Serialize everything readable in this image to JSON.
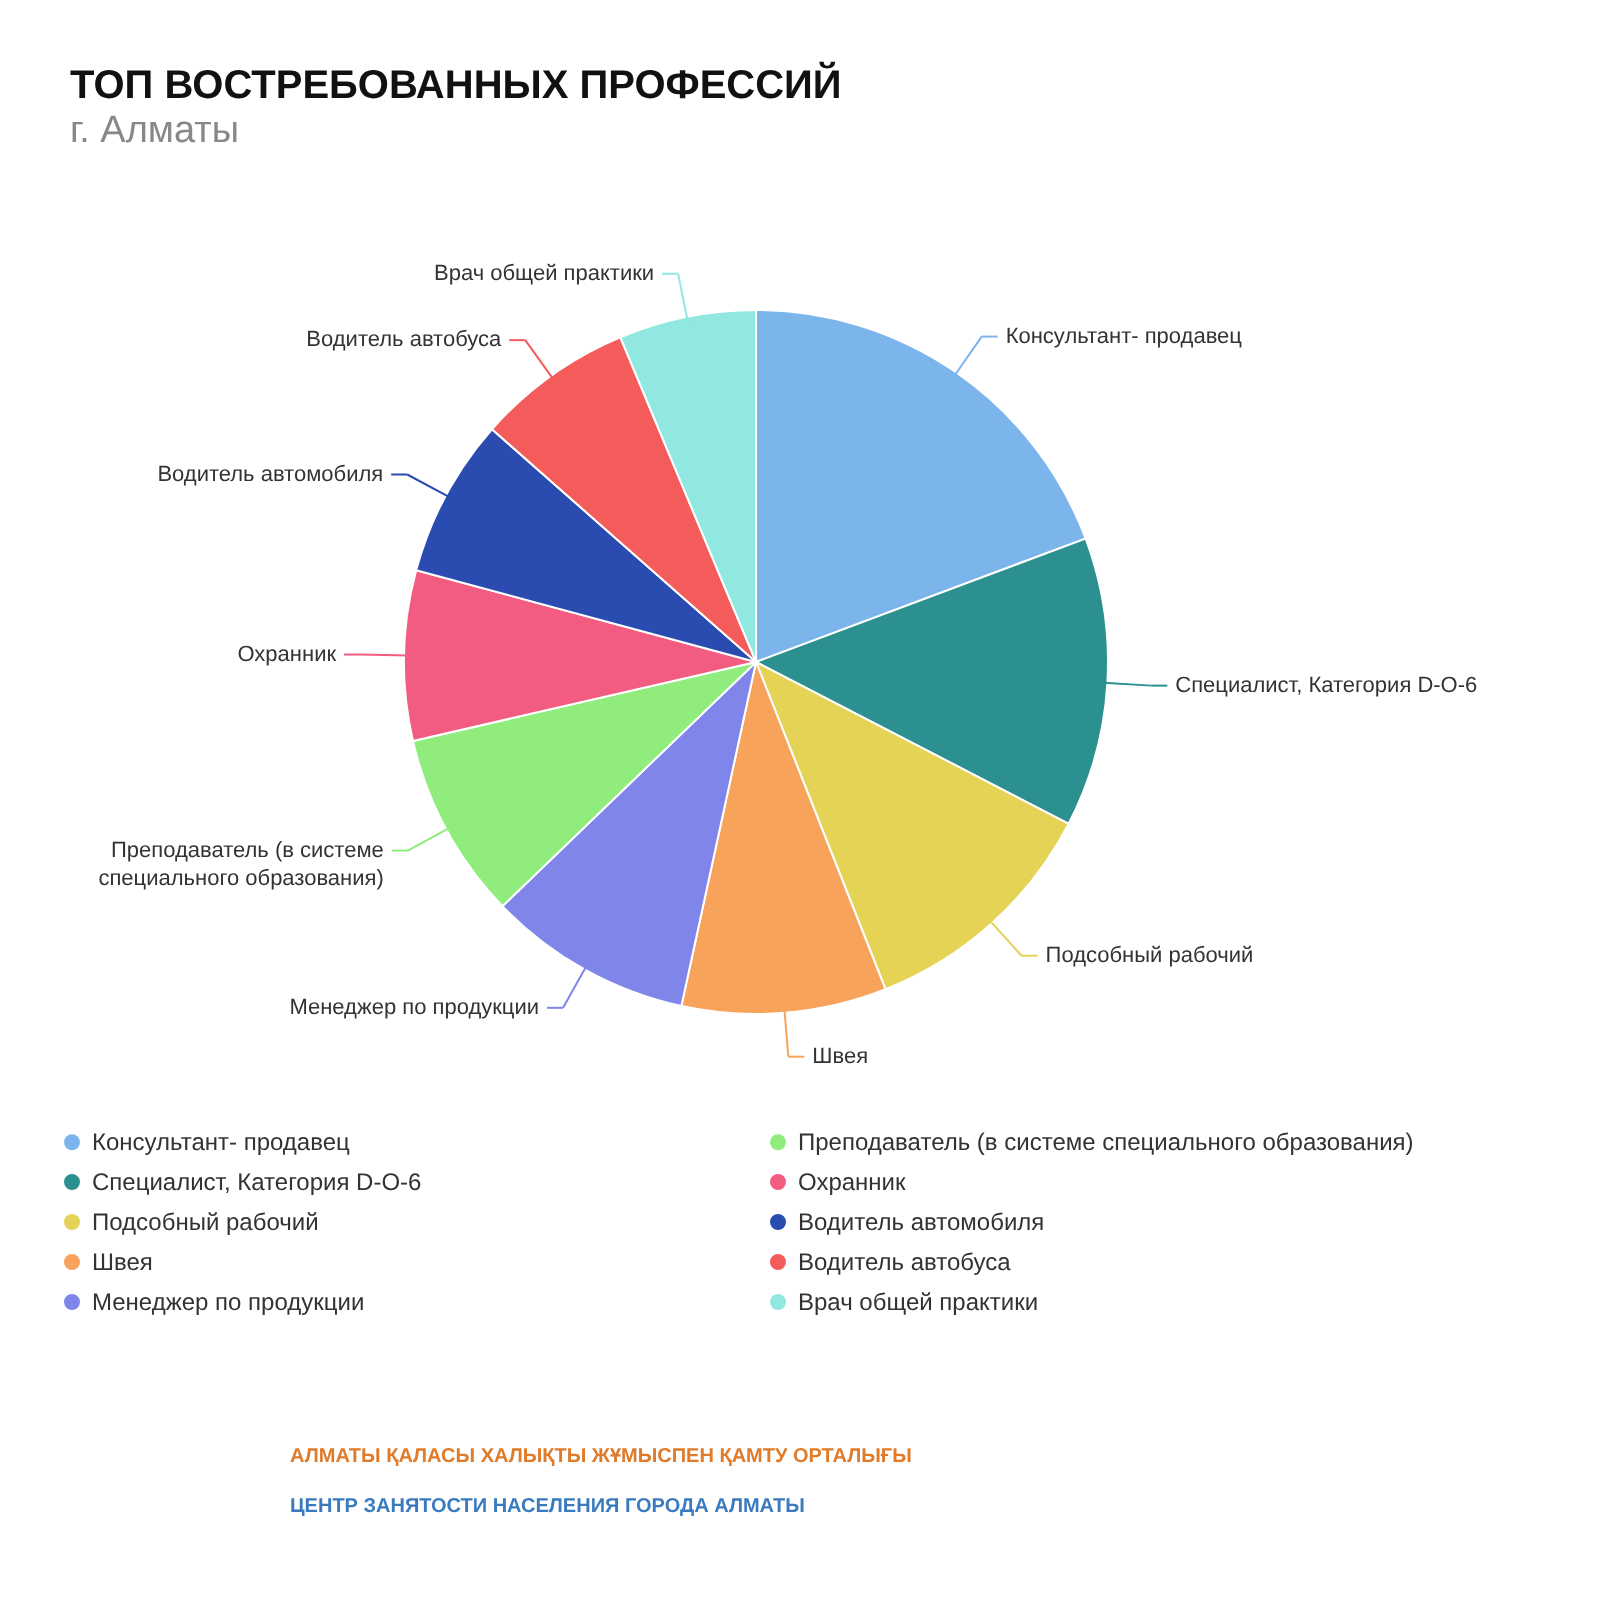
{
  "chart_data": {
    "type": "pie",
    "title": "ТОП ВОСТРЕБОВАННЫХ ПРОФЕССИЙ",
    "subtitle": "г. Алматы",
    "categories": [
      "Консультант- продавец",
      "Специалист, Категория D-O-6",
      "Подсобный рабочий",
      "Швея",
      "Менеджер по продукции",
      "Преподаватель (в системе специального образования)",
      "Охранник",
      "Водитель автомобиля",
      "Водитель автобуса",
      "Врач общей практики"
    ],
    "values": [
      19.3,
      13.3,
      11.4,
      9.4,
      9.4,
      8.6,
      7.8,
      7.3,
      7.2,
      6.3
    ],
    "colors": [
      "#7cb5ec",
      "#2b908f",
      "#e4d354",
      "#f7a35c",
      "#8085e9",
      "#90ed7d",
      "#f15c80",
      "#2a4baf",
      "#f45b5b",
      "#91e8e1"
    ],
    "legend": "bottom",
    "annotations": [
      "АЛМАТЫ ҚАЛАСЫ ХАЛЫҚТЫ ЖҰМЫСПЕН ҚАМТУ ОРТАЛЫҒЫ",
      "ЦЕНТР ЗАНЯТОСТИ НАСЕЛЕНИЯ ГОРОДА АЛМАТЫ"
    ]
  }
}
